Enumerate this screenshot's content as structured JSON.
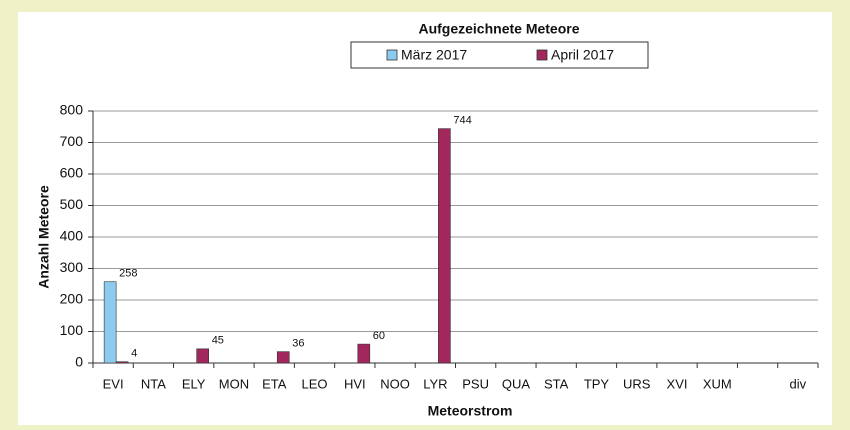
{
  "chart_data": {
    "type": "bar",
    "title": "Aufgezeichnete Meteore",
    "x_label": "Meteorstrom",
    "y_label": "Anzahl Meteore",
    "categories": [
      "EVI",
      "NTA",
      "ELY",
      "MON",
      "ETA",
      "LEO",
      "HVI",
      "NOO",
      "LYR",
      "PSU",
      "QUA",
      "STA",
      "TPY",
      "URS",
      "XVI",
      "XUM",
      null,
      "div"
    ],
    "series": [
      {
        "name": "März 2017",
        "color": "#8ccbee",
        "values": [
          258,
          null,
          null,
          null,
          null,
          null,
          null,
          null,
          null,
          null,
          null,
          null,
          null,
          null,
          null,
          null,
          null,
          null
        ]
      },
      {
        "name": "April 2017",
        "color": "#a2275c",
        "values": [
          4,
          null,
          45,
          null,
          36,
          null,
          60,
          null,
          744,
          null,
          null,
          null,
          null,
          null,
          null,
          null,
          null,
          null
        ]
      }
    ],
    "ylim": [
      0,
      800
    ],
    "yticks": [
      0,
      100,
      200,
      300,
      400,
      500,
      600,
      700,
      800
    ],
    "grid": true
  }
}
